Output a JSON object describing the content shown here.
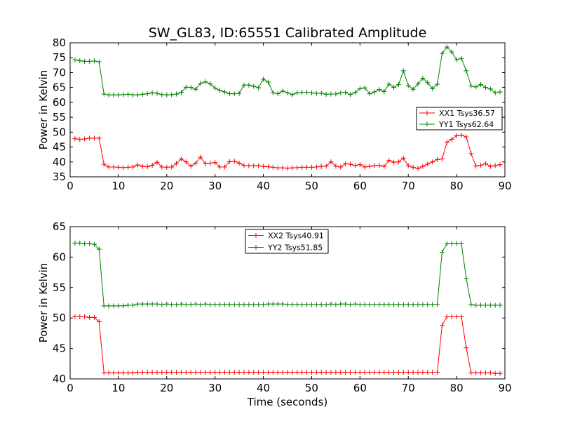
{
  "chart_data": [
    {
      "type": "line",
      "title": "SW_GL83, ID:65551 Calibrated Amplitude",
      "xlabel": "",
      "ylabel": "Power in Kelvin",
      "xlim": [
        0,
        90
      ],
      "ylim": [
        35,
        80
      ],
      "xticks": [
        0,
        10,
        20,
        30,
        40,
        50,
        60,
        70,
        80,
        90
      ],
      "yticks": [
        35,
        40,
        45,
        50,
        55,
        60,
        65,
        70,
        75,
        80
      ],
      "grid": false,
      "legend_position": "center-right",
      "x": [
        1,
        2,
        3,
        4,
        5,
        6,
        7,
        8,
        9,
        10,
        11,
        12,
        13,
        14,
        15,
        16,
        17,
        18,
        19,
        20,
        21,
        22,
        23,
        24,
        25,
        26,
        27,
        28,
        29,
        30,
        31,
        32,
        33,
        34,
        35,
        36,
        37,
        38,
        39,
        40,
        41,
        42,
        43,
        44,
        45,
        46,
        47,
        48,
        49,
        50,
        51,
        52,
        53,
        54,
        55,
        56,
        57,
        58,
        59,
        60,
        61,
        62,
        63,
        64,
        65,
        66,
        67,
        68,
        69,
        70,
        71,
        72,
        73,
        74,
        75,
        76,
        77,
        78,
        79,
        80,
        81,
        82,
        83,
        84,
        85,
        86,
        87,
        88,
        89
      ],
      "series": [
        {
          "name": "XX1 Tsys36.57",
          "color": "#ff0000",
          "values": [
            47.8,
            47.6,
            47.7,
            48.0,
            48.0,
            48.0,
            39.2,
            38.3,
            38.3,
            38.2,
            38.1,
            38.2,
            38.3,
            39.0,
            38.5,
            38.4,
            38.9,
            39.9,
            38.3,
            38.2,
            38.3,
            39.5,
            41.0,
            40.0,
            38.6,
            39.6,
            41.6,
            39.4,
            39.6,
            39.8,
            38.3,
            38.3,
            40.1,
            40.2,
            39.6,
            38.8,
            38.7,
            38.7,
            38.7,
            38.5,
            38.4,
            38.2,
            38.0,
            38.0,
            37.9,
            38.0,
            38.1,
            38.2,
            38.2,
            38.2,
            38.3,
            38.5,
            38.6,
            40.0,
            38.6,
            38.3,
            39.4,
            39.2,
            38.8,
            39.1,
            38.3,
            38.5,
            38.8,
            38.9,
            38.5,
            40.5,
            39.9,
            40.0,
            41.3,
            38.7,
            38.2,
            37.8,
            38.5,
            39.3,
            40.0,
            40.8,
            41.0,
            46.6,
            47.6,
            48.8,
            49.0,
            48.4,
            42.8,
            38.6,
            38.9,
            39.4,
            38.5,
            38.8,
            39.1
          ]
        },
        {
          "name": "YY1 Tsys62.64",
          "color": "#008000",
          "values": [
            74.3,
            74.0,
            73.8,
            73.8,
            73.9,
            73.6,
            62.8,
            62.5,
            62.5,
            62.5,
            62.6,
            62.7,
            62.5,
            62.5,
            62.7,
            62.9,
            63.2,
            63.0,
            62.6,
            62.5,
            62.6,
            62.8,
            63.3,
            65.1,
            65.0,
            64.4,
            66.4,
            66.9,
            66.2,
            64.8,
            64.0,
            63.5,
            62.9,
            62.9,
            63.0,
            65.8,
            65.8,
            65.4,
            64.9,
            67.8,
            66.8,
            63.2,
            62.9,
            63.8,
            63.2,
            62.6,
            63.2,
            63.4,
            63.4,
            63.2,
            63.0,
            63.1,
            62.7,
            62.8,
            62.8,
            63.2,
            63.4,
            62.6,
            63.3,
            64.6,
            64.9,
            62.9,
            63.5,
            64.3,
            63.6,
            66.1,
            65.0,
            66.0,
            70.6,
            65.6,
            64.4,
            66.2,
            68.1,
            66.6,
            64.6,
            66.1,
            76.4,
            78.6,
            76.9,
            74.3,
            74.8,
            70.6,
            65.5,
            65.2,
            66.0,
            65.0,
            64.5,
            63.2,
            63.5
          ]
        }
      ]
    },
    {
      "type": "line",
      "title": "",
      "xlabel": "Time (seconds)",
      "ylabel": "Power in Kelvin",
      "xlim": [
        0,
        90
      ],
      "ylim": [
        40,
        65
      ],
      "xticks": [
        0,
        10,
        20,
        30,
        40,
        50,
        60,
        70,
        80,
        90
      ],
      "yticks": [
        40,
        45,
        50,
        55,
        60,
        65
      ],
      "grid": false,
      "legend_position": "top-center",
      "x": [
        1,
        2,
        3,
        4,
        5,
        6,
        7,
        8,
        9,
        10,
        11,
        12,
        13,
        14,
        15,
        16,
        17,
        18,
        19,
        20,
        21,
        22,
        23,
        24,
        25,
        26,
        27,
        28,
        29,
        30,
        31,
        32,
        33,
        34,
        35,
        36,
        37,
        38,
        39,
        40,
        41,
        42,
        43,
        44,
        45,
        46,
        47,
        48,
        49,
        50,
        51,
        52,
        53,
        54,
        55,
        56,
        57,
        58,
        59,
        60,
        61,
        62,
        63,
        64,
        65,
        66,
        67,
        68,
        69,
        70,
        71,
        72,
        73,
        74,
        75,
        76,
        77,
        78,
        79,
        80,
        81,
        82,
        83,
        84,
        85,
        86,
        87,
        88,
        89
      ],
      "series": [
        {
          "name": "XX2 Tsys40.91",
          "color": "#ff0000",
          "values": [
            50.2,
            50.2,
            50.2,
            50.1,
            50.1,
            49.4,
            41.0,
            41.0,
            41.0,
            41.0,
            41.0,
            41.0,
            41.0,
            41.1,
            41.1,
            41.1,
            41.1,
            41.1,
            41.1,
            41.1,
            41.1,
            41.1,
            41.1,
            41.1,
            41.1,
            41.1,
            41.1,
            41.1,
            41.1,
            41.1,
            41.1,
            41.1,
            41.1,
            41.1,
            41.1,
            41.1,
            41.1,
            41.1,
            41.1,
            41.1,
            41.1,
            41.1,
            41.1,
            41.1,
            41.1,
            41.1,
            41.1,
            41.1,
            41.1,
            41.1,
            41.1,
            41.1,
            41.1,
            41.1,
            41.1,
            41.1,
            41.1,
            41.1,
            41.1,
            41.1,
            41.1,
            41.1,
            41.1,
            41.1,
            41.1,
            41.1,
            41.1,
            41.1,
            41.1,
            41.1,
            41.1,
            41.1,
            41.1,
            41.1,
            41.1,
            41.1,
            48.8,
            50.2,
            50.2,
            50.2,
            50.2,
            45.1,
            41.0,
            41.0,
            41.0,
            41.0,
            41.0,
            40.9,
            40.9
          ]
        },
        {
          "name": "YY2 Tsys51.85",
          "color": "#008000",
          "values": [
            62.3,
            62.3,
            62.2,
            62.2,
            62.1,
            61.3,
            52.0,
            52.0,
            52.0,
            52.0,
            52.0,
            52.1,
            52.1,
            52.3,
            52.3,
            52.3,
            52.3,
            52.3,
            52.2,
            52.3,
            52.2,
            52.2,
            52.3,
            52.2,
            52.2,
            52.3,
            52.2,
            52.3,
            52.2,
            52.2,
            52.2,
            52.2,
            52.2,
            52.2,
            52.2,
            52.2,
            52.2,
            52.2,
            52.2,
            52.2,
            52.3,
            52.3,
            52.3,
            52.3,
            52.2,
            52.2,
            52.2,
            52.2,
            52.2,
            52.2,
            52.2,
            52.2,
            52.2,
            52.3,
            52.2,
            52.3,
            52.3,
            52.2,
            52.3,
            52.2,
            52.2,
            52.2,
            52.2,
            52.2,
            52.2,
            52.2,
            52.2,
            52.2,
            52.2,
            52.2,
            52.2,
            52.2,
            52.2,
            52.2,
            52.2,
            52.2,
            60.8,
            62.2,
            62.2,
            62.2,
            62.2,
            56.5,
            52.2,
            52.1,
            52.1,
            52.1,
            52.1,
            52.1,
            52.1
          ]
        }
      ]
    }
  ]
}
